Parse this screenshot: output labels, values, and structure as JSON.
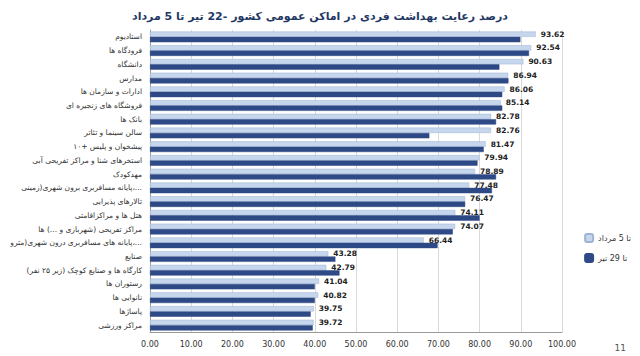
{
  "chart_data": {
    "type": "bar",
    "orientation": "horizontal",
    "title": "درصد رعایت بهداشت فردی در اماکن عمومی کشور -22 تیر تا 5 مرداد",
    "annotations": [
      "11"
    ],
    "categories": [
      "استادیوم",
      "فرودگاه ها",
      "دانشگاه",
      "مدارس",
      "ادارات و سازمان ها",
      "فروشگاه های زنجیره ای",
      "بانک ها",
      "سالن سینما و تئاتر",
      "پیشخوان و پلیس +۱۰",
      "استخرهای شنا و مراکز تفریحی آبی",
      "مهدکودک",
      "پایانه مسافربری برون شهری(زمینی،...",
      "تالارهای پذیرایی",
      "هتل ها و مراکزاقامتی",
      "مراکز تفریحی (شهربازی و ...) ها",
      "پایانه های مسافربری درون شهری(مترو،...",
      "صنایع",
      "کارگاه ها و صنایع کوچک (زیر ۲۵ نفر)",
      "رستوران ها",
      "نانوایی ها",
      "پاساژها",
      "مراکز ورزشی"
    ],
    "series": [
      {
        "name": "تا 5 مرداد",
        "color": "#c6d6ec",
        "data_labels": true,
        "values": [
          93.62,
          92.54,
          90.63,
          86.94,
          86.06,
          85.14,
          82.78,
          82.76,
          81.47,
          79.94,
          78.89,
          77.48,
          76.47,
          74.11,
          74.07,
          66.44,
          43.28,
          42.79,
          41.04,
          40.82,
          39.75,
          39.72
        ]
      },
      {
        "name": "تا 29 تیر",
        "color": "#2e4a86",
        "values": [
          89.9,
          92.0,
          84.8,
          87.0,
          85.5,
          85.5,
          84.0,
          67.8,
          81.0,
          79.5,
          84.0,
          83.0,
          76.5,
          80.0,
          73.5,
          69.8,
          45.0,
          46.0,
          40.0,
          40.0,
          39.0,
          39.5
        ]
      }
    ],
    "xlim": [
      0,
      100
    ],
    "xticks": [
      {
        "value": 0,
        "label": "0.00"
      },
      {
        "value": 10,
        "label": "10.00"
      },
      {
        "value": 20,
        "label": "20.00"
      },
      {
        "value": 30,
        "label": "30.00"
      },
      {
        "value": 40,
        "label": "40.00"
      },
      {
        "value": 50,
        "label": "50.00"
      },
      {
        "value": 60,
        "label": "60.00"
      },
      {
        "value": 70,
        "label": "70.00"
      },
      {
        "value": 80,
        "label": "80.00"
      },
      {
        "value": 90,
        "label": "90.00"
      },
      {
        "value": 100,
        "label": "100.00"
      }
    ],
    "grid": true,
    "legend": "right"
  }
}
